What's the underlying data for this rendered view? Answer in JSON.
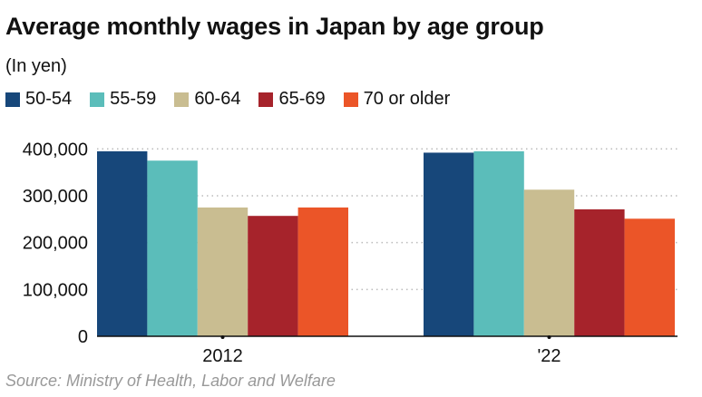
{
  "chart_data": {
    "type": "bar",
    "title": "Average monthly wages in Japan by age group",
    "subtitle": "(In yen)",
    "categories": [
      "2012",
      "'22"
    ],
    "series": [
      {
        "name": "50-54",
        "color": "#17477a",
        "values": [
          395000,
          392000
        ]
      },
      {
        "name": "55-59",
        "color": "#5bbdba",
        "values": [
          375000,
          395000
        ]
      },
      {
        "name": "60-64",
        "color": "#c9bd91",
        "values": [
          275000,
          313000
        ]
      },
      {
        "name": "65-69",
        "color": "#a6232b",
        "values": [
          257000,
          271000
        ]
      },
      {
        "name": "70 or older",
        "color": "#eb5528",
        "values": [
          275000,
          251000
        ]
      }
    ],
    "ylim": [
      0,
      400000
    ],
    "yticks": [
      "0",
      "100,000",
      "200,000",
      "300,000",
      "400,000"
    ],
    "ytick_values": [
      0,
      100000,
      200000,
      300000,
      400000
    ],
    "xlabel": "",
    "ylabel": "",
    "grid": true,
    "legend": "top-left",
    "source": "Source: Ministry of Health, Labor and Welfare"
  }
}
